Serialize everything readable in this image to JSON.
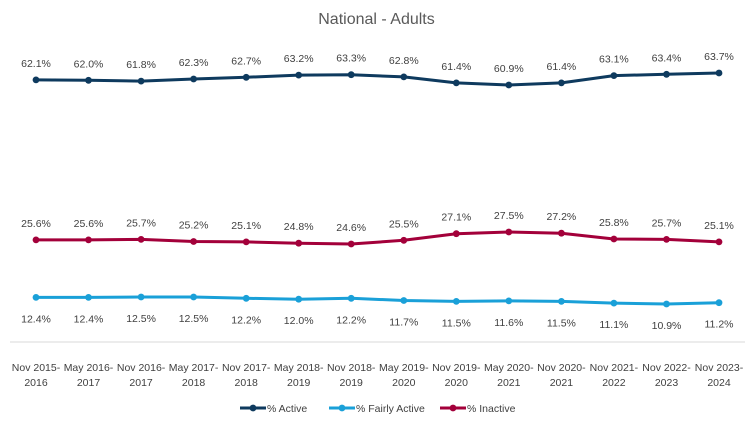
{
  "chart_data": {
    "type": "line",
    "title": "National - Adults",
    "xlabel": "",
    "ylabel": "",
    "grid": false,
    "legend_position": "bottom",
    "categories": [
      [
        "Nov 2015-",
        "2016"
      ],
      [
        "May 2016-",
        "2017"
      ],
      [
        "Nov 2016-",
        "2017"
      ],
      [
        "May 2017-",
        "2018"
      ],
      [
        "Nov 2017-",
        "2018"
      ],
      [
        "May 2018-",
        "2019"
      ],
      [
        "Nov 2018-",
        "2019"
      ],
      [
        "May 2019-",
        "2020"
      ],
      [
        "Nov 2019-",
        "2020"
      ],
      [
        "May 2020-",
        "2021"
      ],
      [
        "Nov 2020-",
        "2021"
      ],
      [
        "Nov 2021-",
        "2022"
      ],
      [
        "Nov 2022-",
        "2023"
      ],
      [
        "Nov 2023-",
        "2024"
      ]
    ],
    "ylim": [
      0,
      70
    ],
    "series": [
      {
        "name": "% Active",
        "color": "#0e3a5e",
        "values": [
          62.1,
          62.0,
          61.8,
          62.3,
          62.7,
          63.2,
          63.3,
          62.8,
          61.4,
          60.9,
          61.4,
          63.1,
          63.4,
          63.7
        ],
        "labels": [
          "62.1%",
          "62.0%",
          "61.8%",
          "62.3%",
          "62.7%",
          "63.2%",
          "63.3%",
          "62.8%",
          "61.4%",
          "60.9%",
          "61.4%",
          "63.1%",
          "63.4%",
          "63.7%"
        ],
        "label_position": "above"
      },
      {
        "name": "% Fairly Active",
        "color": "#1aa0d8",
        "values": [
          12.4,
          12.4,
          12.5,
          12.5,
          12.2,
          12.0,
          12.2,
          11.7,
          11.5,
          11.6,
          11.5,
          11.1,
          10.9,
          11.2
        ],
        "labels": [
          "12.4%",
          "12.4%",
          "12.5%",
          "12.5%",
          "12.2%",
          "12.0%",
          "12.2%",
          "11.7%",
          "11.5%",
          "11.6%",
          "11.5%",
          "11.1%",
          "10.9%",
          "11.2%"
        ],
        "label_position": "below"
      },
      {
        "name": "% Inactive",
        "color": "#a3003a",
        "values": [
          25.6,
          25.6,
          25.7,
          25.2,
          25.1,
          24.8,
          24.6,
          25.5,
          27.1,
          27.5,
          27.2,
          25.8,
          25.7,
          25.1
        ],
        "labels": [
          "25.6%",
          "25.6%",
          "25.7%",
          "25.2%",
          "25.1%",
          "24.8%",
          "24.6%",
          "25.5%",
          "27.1%",
          "27.5%",
          "27.2%",
          "25.8%",
          "25.7%",
          "25.1%"
        ],
        "label_position": "above"
      }
    ]
  }
}
